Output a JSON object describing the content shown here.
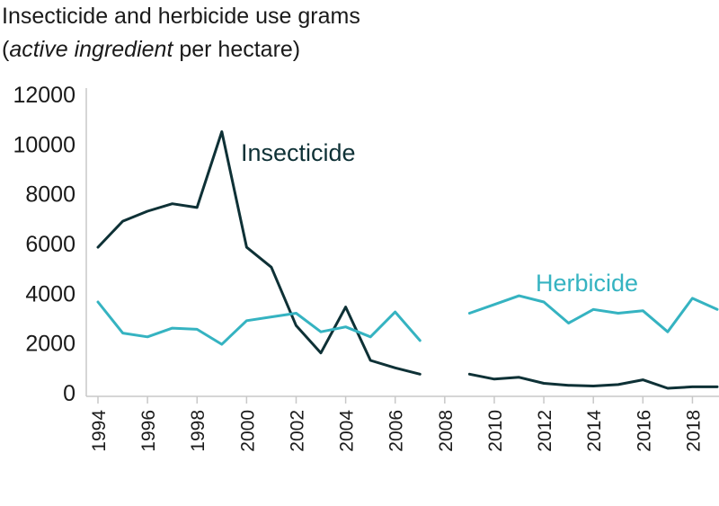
{
  "title_line1": "Insecticide and herbicide use grams",
  "title_line2_italic": "active ingredient",
  "title_line2_rest": " per hectare)",
  "title_line2_open": "(",
  "chart_data": {
    "type": "line",
    "title": "Insecticide and herbicide use grams (active ingredient per hectare)",
    "xlabel": "",
    "ylabel": "",
    "xlim": [
      1994,
      2019
    ],
    "ylim": [
      0,
      12000
    ],
    "y_ticks": [
      0,
      2000,
      4000,
      6000,
      8000,
      10000,
      12000
    ],
    "y_tick_labels": [
      "0",
      "2000",
      "4000",
      "6000",
      "8000",
      "10000",
      "12000"
    ],
    "x_ticks": [
      1994,
      1996,
      1998,
      2000,
      2002,
      2004,
      2006,
      2008,
      2010,
      2012,
      2014,
      2016,
      2018
    ],
    "x_tick_labels": [
      "1994",
      "1996",
      "1998",
      "2000",
      "2002",
      "2004",
      "2006",
      "2008",
      "2010",
      "2012",
      "2014",
      "2016",
      "2018"
    ],
    "grid": false,
    "legend": "direct labels on lines",
    "x": [
      1994,
      1995,
      1996,
      1997,
      1998,
      1999,
      2000,
      2001,
      2002,
      2003,
      2004,
      2005,
      2006,
      2007,
      2008,
      2009,
      2010,
      2011,
      2012,
      2013,
      2014,
      2015,
      2016,
      2017,
      2018,
      2019
    ],
    "series": [
      {
        "name": "Insecticide",
        "color": "#0e3136",
        "values": [
          5850,
          6900,
          7300,
          7600,
          7450,
          10500,
          5850,
          5050,
          2700,
          1600,
          3450,
          1300,
          1000,
          750,
          null,
          750,
          550,
          620,
          380,
          300,
          270,
          330,
          520,
          180,
          240,
          240
        ]
      },
      {
        "name": "Herbicide",
        "color": "#35b3c1",
        "values": [
          3650,
          2400,
          2250,
          2600,
          2550,
          1950,
          2900,
          3050,
          3200,
          2450,
          2650,
          2250,
          3250,
          2100,
          null,
          3200,
          3550,
          3900,
          3650,
          2800,
          3350,
          3200,
          3300,
          2450,
          3800,
          3350
        ]
      }
    ]
  }
}
